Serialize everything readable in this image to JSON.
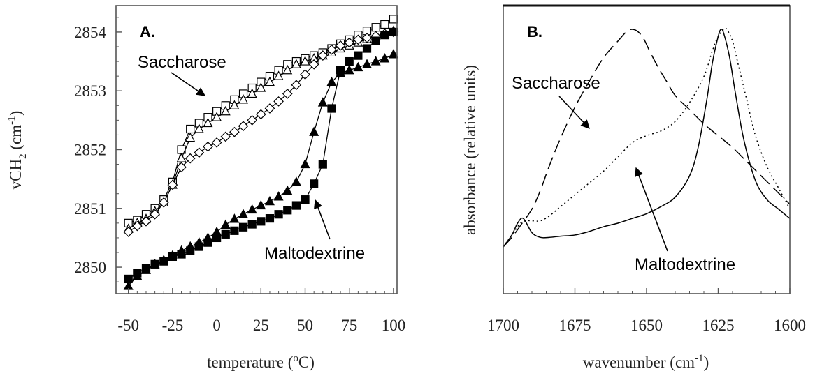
{
  "chart_data": [
    {
      "type": "scatter",
      "panel": "A.",
      "xlabel": "temperature (",
      "xlabel_sup": "o",
      "xlabel_tail": "C)",
      "ylabel": "vCH",
      "ylabel_sub": "2",
      "ylabel_unit": " (cm",
      "ylabel_sup": "-1",
      "ylabel_tail": ")",
      "xlim": [
        -57,
        102
      ],
      "ylim": [
        2849.55,
        2854.45
      ],
      "xticks": [
        -50,
        -25,
        0,
        25,
        50,
        75,
        100
      ],
      "xtick_labels": [
        "-50",
        "-25",
        "0",
        "25",
        "50",
        "75",
        "100"
      ],
      "yticks": [
        2850,
        2851,
        2852,
        2853,
        2854
      ],
      "ytick_labels": [
        "2850",
        "2851",
        "2852",
        "2853",
        "2854"
      ],
      "series": [
        {
          "marker": "open-square",
          "x": [
            -50,
            -45,
            -40,
            -35,
            -30,
            -25,
            -20,
            -15,
            -10,
            -5,
            0,
            5,
            10,
            15,
            20,
            25,
            30,
            35,
            40,
            45,
            50,
            55,
            60,
            65,
            70,
            75,
            80,
            85,
            90,
            95,
            100
          ],
          "y": [
            2850.75,
            2850.8,
            2850.9,
            2851.0,
            2851.15,
            2851.45,
            2852.0,
            2852.35,
            2852.45,
            2852.55,
            2852.65,
            2852.75,
            2852.85,
            2852.95,
            2853.05,
            2853.15,
            2853.25,
            2853.35,
            2853.45,
            2853.5,
            2853.55,
            2853.6,
            2853.65,
            2853.72,
            2853.8,
            2853.87,
            2853.95,
            2854.02,
            2854.08,
            2854.13,
            2854.22
          ]
        },
        {
          "marker": "open-triangle",
          "x": [
            -50,
            -45,
            -40,
            -35,
            -30,
            -25,
            -20,
            -15,
            -10,
            -5,
            0,
            5,
            10,
            15,
            20,
            25,
            30,
            35,
            40,
            45,
            50,
            55,
            60,
            65,
            70,
            75,
            80,
            85,
            90,
            95,
            100
          ],
          "y": [
            2850.65,
            2850.75,
            2850.82,
            2850.95,
            2851.1,
            2851.4,
            2851.85,
            2852.2,
            2852.35,
            2852.45,
            2852.55,
            2852.65,
            2852.75,
            2852.85,
            2852.95,
            2853.05,
            2853.15,
            2853.25,
            2853.35,
            2853.45,
            2853.5,
            2853.55,
            2853.6,
            2853.65,
            2853.72,
            2853.77,
            2853.82,
            2853.88,
            2853.93,
            2853.97,
            2854.02
          ]
        },
        {
          "marker": "open-diamond",
          "x": [
            -50,
            -45,
            -40,
            -35,
            -30,
            -25,
            -20,
            -15,
            -10,
            -5,
            0,
            5,
            10,
            15,
            20,
            25,
            30,
            35,
            40,
            45,
            50,
            55,
            60,
            65,
            70,
            75,
            80,
            85,
            90,
            95,
            100
          ],
          "y": [
            2850.6,
            2850.7,
            2850.78,
            2850.9,
            2851.1,
            2851.4,
            2851.7,
            2851.85,
            2851.95,
            2852.05,
            2852.12,
            2852.22,
            2852.3,
            2852.4,
            2852.5,
            2852.6,
            2852.7,
            2852.82,
            2852.95,
            2853.1,
            2853.28,
            2853.45,
            2853.6,
            2853.7,
            2853.77,
            2853.82,
            2853.87,
            2853.9,
            2853.93,
            2853.97,
            2854.0
          ]
        },
        {
          "marker": "filled-triangle",
          "x": [
            -50,
            -45,
            -40,
            -35,
            -30,
            -25,
            -20,
            -15,
            -10,
            -5,
            0,
            5,
            10,
            15,
            20,
            25,
            30,
            35,
            40,
            45,
            50,
            55,
            60,
            65,
            70,
            75,
            80,
            85,
            90,
            95,
            100
          ],
          "y": [
            2849.68,
            2849.85,
            2849.95,
            2850.05,
            2850.12,
            2850.2,
            2850.28,
            2850.35,
            2850.42,
            2850.5,
            2850.6,
            2850.72,
            2850.82,
            2850.9,
            2850.98,
            2851.05,
            2851.12,
            2851.2,
            2851.3,
            2851.45,
            2851.75,
            2852.3,
            2852.8,
            2853.15,
            2853.3,
            2853.35,
            2853.4,
            2853.45,
            2853.5,
            2853.55,
            2853.62
          ]
        },
        {
          "marker": "filled-square",
          "x": [
            -50,
            -45,
            -40,
            -35,
            -30,
            -25,
            -20,
            -15,
            -10,
            -5,
            0,
            5,
            10,
            15,
            20,
            25,
            30,
            35,
            40,
            45,
            50,
            55,
            60,
            65,
            70,
            75,
            80,
            85,
            90,
            95,
            100
          ],
          "y": [
            2849.8,
            2849.9,
            2849.98,
            2850.05,
            2850.1,
            2850.18,
            2850.22,
            2850.28,
            2850.35,
            2850.42,
            2850.5,
            2850.56,
            2850.62,
            2850.68,
            2850.73,
            2850.78,
            2850.83,
            2850.9,
            2850.97,
            2851.05,
            2851.15,
            2851.42,
            2851.75,
            2852.7,
            2853.35,
            2853.5,
            2853.6,
            2853.72,
            2853.85,
            2853.95,
            2854.0
          ]
        }
      ],
      "annotations": [
        {
          "text": "Saccharose",
          "arrow_to": [
            -9,
            2852.95
          ]
        },
        {
          "text": "Maltodextrine",
          "arrow_to": [
            51,
            2851.2
          ]
        }
      ]
    },
    {
      "type": "line",
      "panel": "B.",
      "xlabel": "wavenumber (cm",
      "xlabel_sup": "-1",
      "xlabel_tail": ")",
      "ylabel": "absorbance (relative units)",
      "xlim": [
        1700,
        1600
      ],
      "ylim": [
        0,
        1
      ],
      "xticks": [
        1700,
        1675,
        1650,
        1625,
        1600
      ],
      "xtick_labels": [
        "1700",
        "1675",
        "1650",
        "1625",
        "1600"
      ],
      "series": [
        {
          "style": "dashed",
          "x": [
            1700,
            1697,
            1694,
            1690,
            1687,
            1684,
            1680,
            1675,
            1670,
            1665,
            1660,
            1657,
            1655,
            1653,
            1651,
            1649,
            1646,
            1643,
            1640,
            1635,
            1630,
            1625,
            1620,
            1615,
            1610,
            1605,
            1600
          ],
          "y": [
            0.08,
            0.12,
            0.17,
            0.24,
            0.32,
            0.42,
            0.54,
            0.67,
            0.78,
            0.88,
            0.95,
            0.99,
            1.0,
            0.99,
            0.96,
            0.91,
            0.84,
            0.78,
            0.72,
            0.66,
            0.6,
            0.55,
            0.5,
            0.44,
            0.38,
            0.32,
            0.26
          ]
        },
        {
          "style": "solid",
          "x": [
            1700,
            1697,
            1695,
            1693,
            1690,
            1687,
            1684,
            1680,
            1675,
            1670,
            1665,
            1660,
            1655,
            1650,
            1645,
            1640,
            1635,
            1632,
            1629,
            1627,
            1625,
            1624,
            1623,
            1621,
            1619,
            1616,
            1612,
            1608,
            1604,
            1600
          ],
          "y": [
            0.08,
            0.13,
            0.18,
            0.2,
            0.14,
            0.12,
            0.12,
            0.125,
            0.13,
            0.145,
            0.165,
            0.18,
            0.2,
            0.22,
            0.25,
            0.29,
            0.38,
            0.5,
            0.7,
            0.86,
            0.97,
            1.0,
            0.98,
            0.88,
            0.73,
            0.53,
            0.36,
            0.28,
            0.24,
            0.2
          ]
        },
        {
          "style": "dotted",
          "x": [
            1700,
            1697,
            1694,
            1692,
            1690,
            1687,
            1684,
            1680,
            1675,
            1670,
            1665,
            1660,
            1655,
            1650,
            1645,
            1640,
            1635,
            1630,
            1627,
            1625,
            1623,
            1622,
            1620,
            1618,
            1615,
            1612,
            1608,
            1604,
            1600
          ],
          "y": [
            0.08,
            0.13,
            0.18,
            0.19,
            0.19,
            0.19,
            0.21,
            0.25,
            0.3,
            0.35,
            0.4,
            0.46,
            0.52,
            0.55,
            0.57,
            0.61,
            0.69,
            0.8,
            0.91,
            0.97,
            1.0,
            1.0,
            0.95,
            0.85,
            0.7,
            0.55,
            0.42,
            0.33,
            0.24
          ]
        }
      ],
      "annotations": [
        {
          "text": "Saccharose",
          "arrow_to": [
            1668,
            0.76
          ]
        },
        {
          "text": "Maltodextrine",
          "arrow_to": [
            1649,
            0.51
          ]
        }
      ]
    }
  ]
}
